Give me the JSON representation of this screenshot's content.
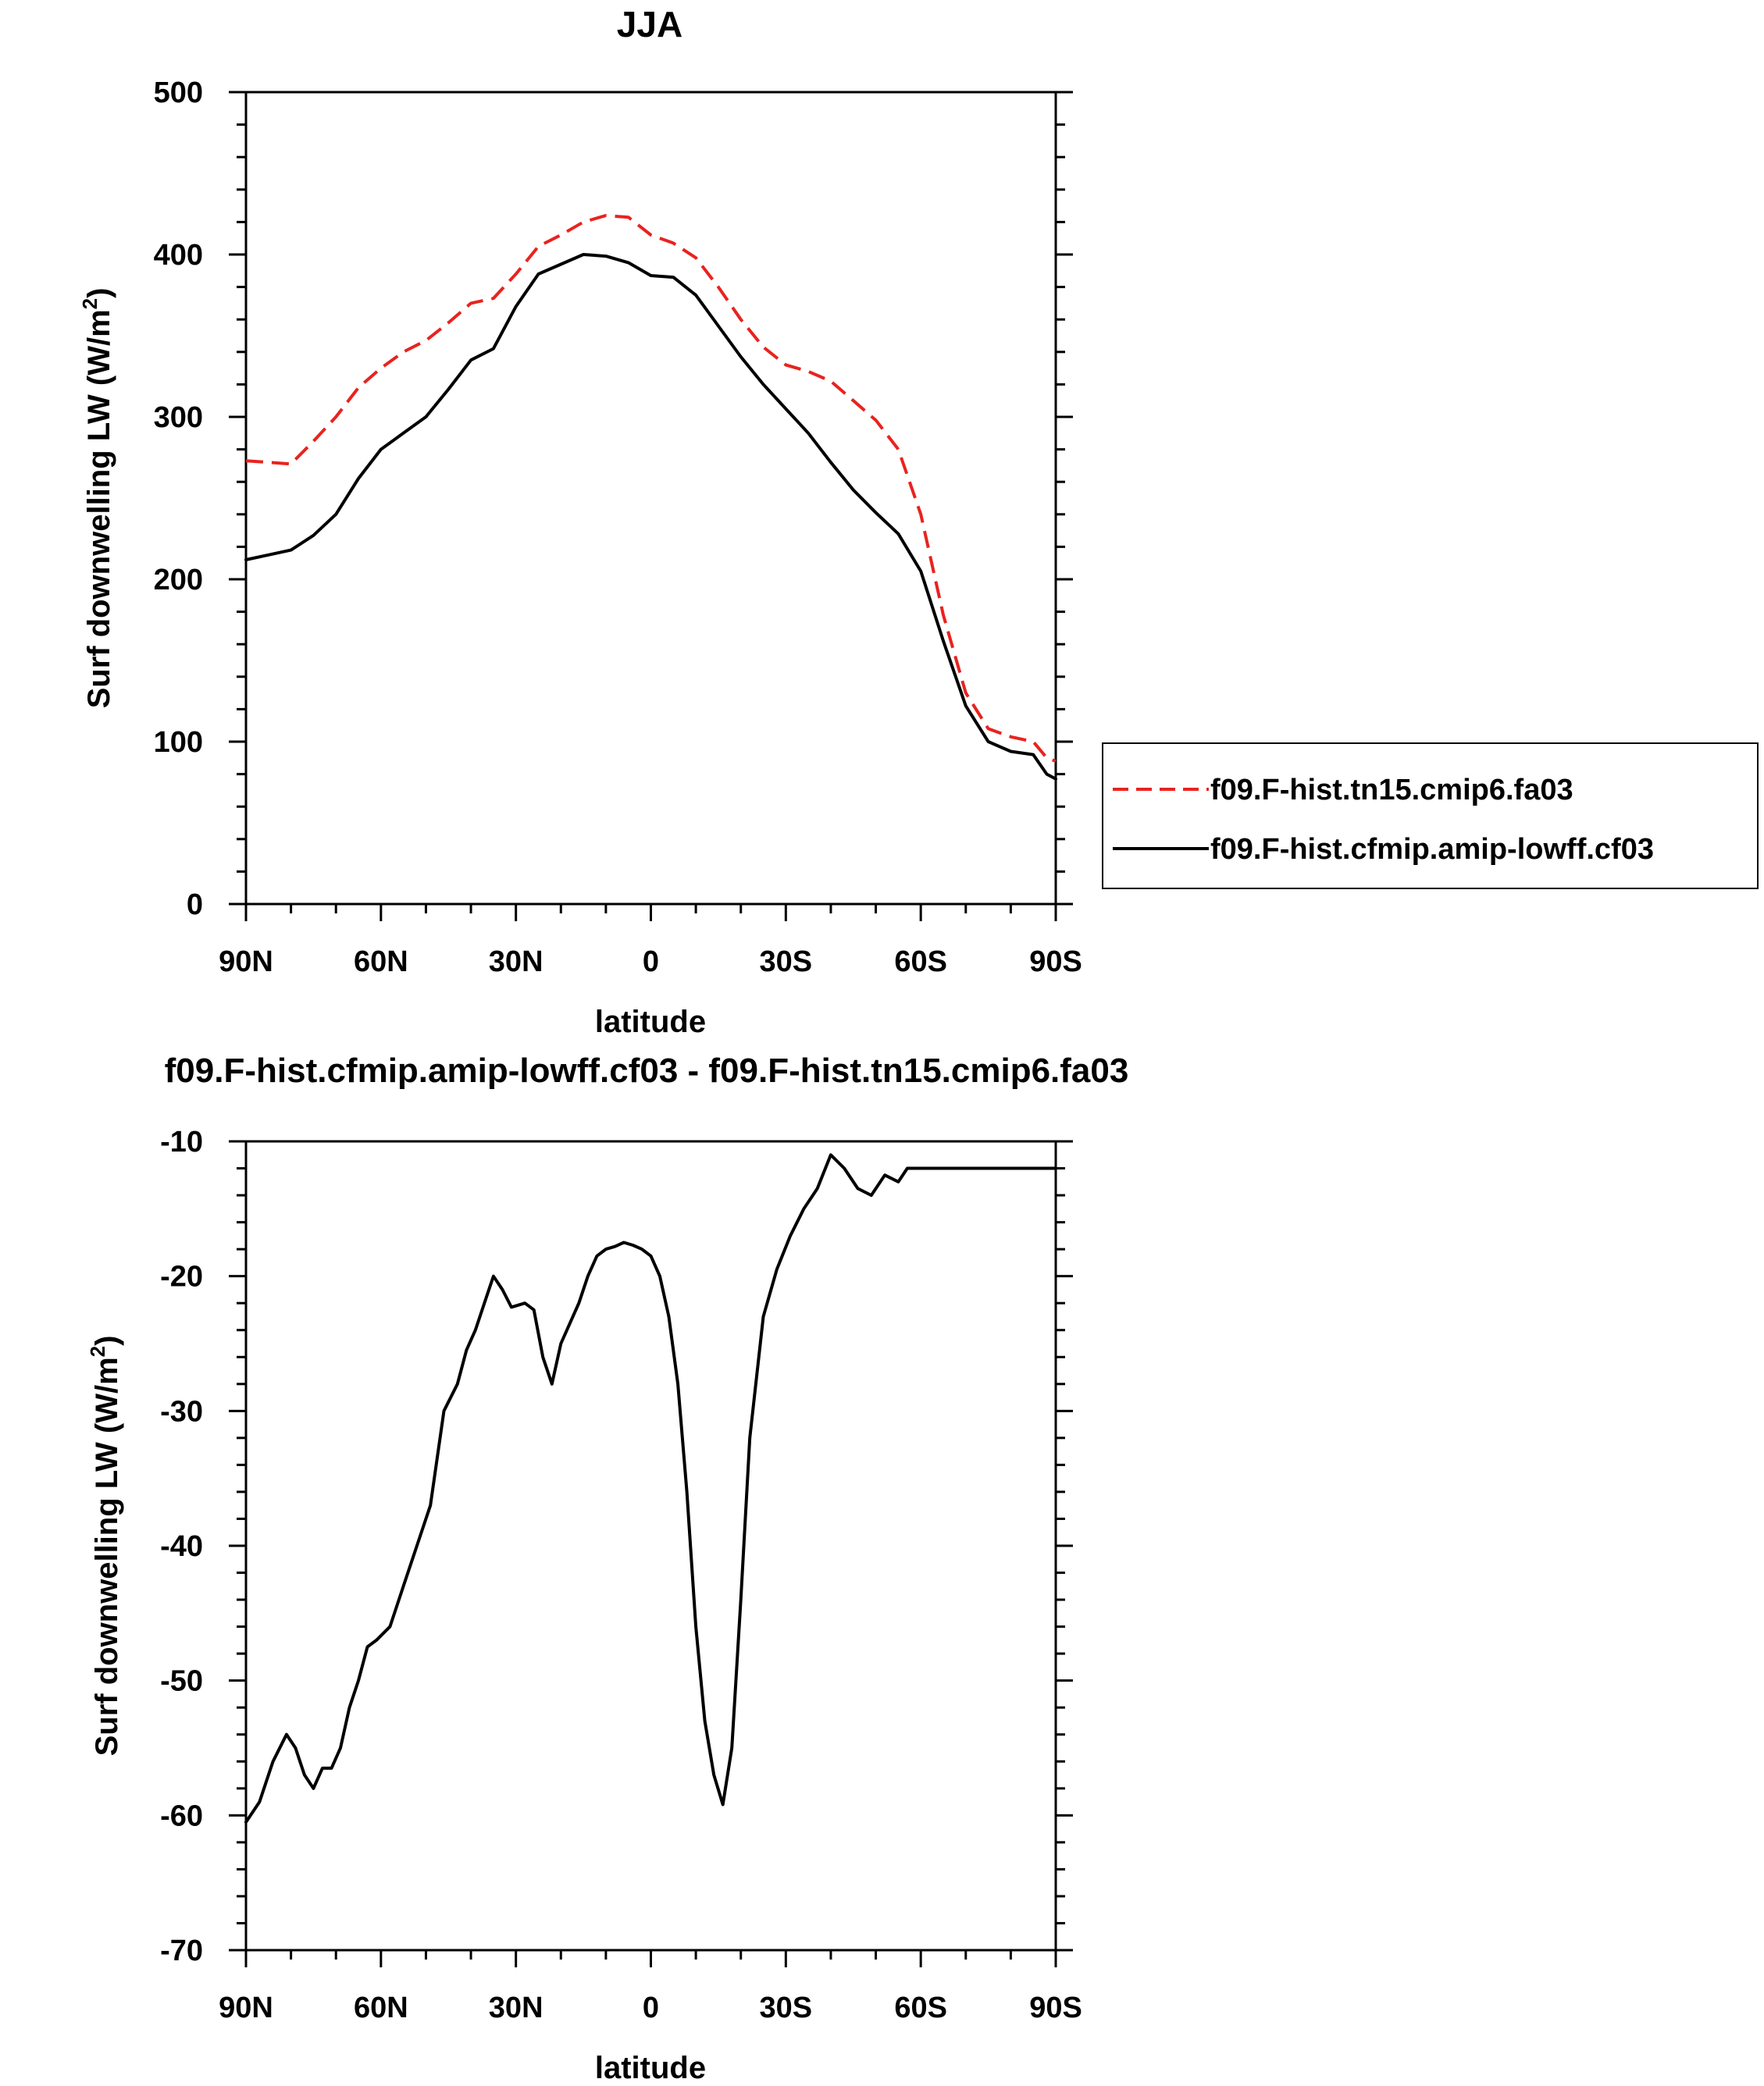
{
  "chart_data": [
    {
      "type": "line",
      "title": "JJA",
      "xlabel": "latitude",
      "ylabel": "Surf downwelling LW (W/m",
      "ylabel_sup": "2",
      "ylabel_close": ")",
      "xlim": [
        90,
        -90
      ],
      "ylim": [
        0,
        500
      ],
      "xticks": [
        90,
        60,
        30,
        0,
        -30,
        -60,
        -90
      ],
      "xtick_labels": [
        "90N",
        "60N",
        "30N",
        "0",
        "30S",
        "60S",
        "90S"
      ],
      "yticks": [
        0,
        100,
        200,
        300,
        400,
        500
      ],
      "ytick_labels": [
        "0",
        "100",
        "200",
        "300",
        "400",
        "500"
      ],
      "grid": false,
      "legend_position": "right",
      "series": [
        {
          "name": "f09.F-hist.tn15.cmip6.fa03",
          "color": "#e8231f",
          "style": "dashed",
          "x": [
            90,
            85,
            80,
            75,
            70,
            65,
            60,
            55,
            50,
            45,
            40,
            35,
            30,
            25,
            20,
            15,
            10,
            5,
            0,
            -5,
            -10,
            -15,
            -20,
            -25,
            -30,
            -35,
            -40,
            -45,
            -50,
            -55,
            -60,
            -65,
            -70,
            -75,
            -80,
            -85,
            -88,
            -90
          ],
          "values": [
            273,
            272,
            271,
            285,
            300,
            318,
            330,
            340,
            347,
            358,
            370,
            373,
            388,
            405,
            412,
            420,
            424,
            423,
            412,
            407,
            398,
            380,
            360,
            343,
            332,
            328,
            322,
            310,
            298,
            280,
            240,
            178,
            130,
            108,
            103,
            100,
            90,
            88
          ]
        },
        {
          "name": "f09.F-hist.cfmip.amip-lowff.cf03",
          "color": "#000000",
          "style": "solid",
          "x": [
            90,
            85,
            80,
            75,
            70,
            65,
            60,
            55,
            50,
            45,
            40,
            35,
            30,
            25,
            20,
            15,
            10,
            5,
            0,
            -5,
            -10,
            -15,
            -20,
            -25,
            -30,
            -35,
            -40,
            -45,
            -50,
            -55,
            -60,
            -65,
            -70,
            -75,
            -80,
            -85,
            -88,
            -90
          ],
          "values": [
            212,
            215,
            218,
            227,
            240,
            262,
            280,
            290,
            300,
            317,
            335,
            342,
            368,
            388,
            394,
            400,
            399,
            395,
            387,
            386,
            375,
            356,
            337,
            320,
            305,
            290,
            272,
            255,
            241,
            228,
            205,
            162,
            122,
            100,
            94,
            92,
            80,
            77
          ]
        }
      ]
    },
    {
      "type": "line",
      "title": "f09.F-hist.cfmip.amip-lowff.cf03 - f09.F-hist.tn15.cmip6.fa03",
      "xlabel": "latitude",
      "ylabel": "Surf downwelling LW (W/m",
      "ylabel_sup": "2",
      "ylabel_close": ")",
      "xlim": [
        90,
        -90
      ],
      "ylim": [
        -70,
        -10
      ],
      "xticks": [
        90,
        60,
        30,
        0,
        -30,
        -60,
        -90
      ],
      "xtick_labels": [
        "90N",
        "60N",
        "30N",
        "0",
        "30S",
        "60S",
        "90S"
      ],
      "yticks": [
        -10,
        -20,
        -30,
        -40,
        -50,
        -60,
        -70
      ],
      "ytick_labels": [
        "-10",
        "-20",
        "-30",
        "-40",
        "-50",
        "-60",
        "-70"
      ],
      "grid": false,
      "series": [
        {
          "color": "#000000",
          "style": "solid",
          "x": [
            90,
            87,
            84,
            81,
            79,
            77,
            75,
            73,
            71,
            69,
            67,
            65,
            63,
            61,
            58,
            55,
            52,
            49,
            46,
            43,
            41,
            39,
            37,
            35,
            33,
            31,
            28,
            26,
            24,
            22,
            20,
            18,
            16,
            14,
            12,
            10,
            8,
            6,
            4,
            2,
            0,
            -2,
            -4,
            -6,
            -8,
            -10,
            -12,
            -14,
            -16,
            -18,
            -20,
            -22,
            -25,
            -28,
            -31,
            -34,
            -37,
            -40,
            -43,
            -46,
            -49,
            -52,
            -55,
            -57,
            -59,
            -61,
            -63,
            -65,
            -67,
            -69,
            -71,
            -73,
            -75,
            -77,
            -78,
            -80,
            -82,
            -84,
            -86,
            -87,
            -88,
            -89,
            -90
          ],
          "values": [
            -60.5,
            -59,
            -56,
            -54,
            -55,
            -57,
            -58,
            -56.5,
            -56.5,
            -55,
            -52,
            -50,
            -47.5,
            -47,
            -46,
            -43,
            -40,
            -37,
            -30,
            -28,
            -25.5,
            -24,
            -22,
            -20,
            -21,
            -22.3,
            -22,
            -22.5,
            -26,
            -28,
            -25,
            -23.5,
            -22,
            -20,
            -18.5,
            -18,
            -17.8,
            -17.5,
            -17.7,
            -18,
            -18.5,
            -20,
            -23,
            -28,
            -36,
            -46,
            -53,
            -57,
            -59.2,
            -55,
            -44,
            -32,
            -23,
            -19.5,
            -17,
            -15,
            -13.5,
            -11,
            -12,
            -13.5,
            -14,
            -12.5,
            -13,
            -12,
            -12,
            -12,
            -12,
            -12,
            -12,
            -12,
            -12,
            -12,
            -12,
            -12,
            -12,
            -12,
            -12,
            -12,
            -12,
            -12,
            -12,
            -12,
            -12
          ]
        }
      ]
    }
  ]
}
